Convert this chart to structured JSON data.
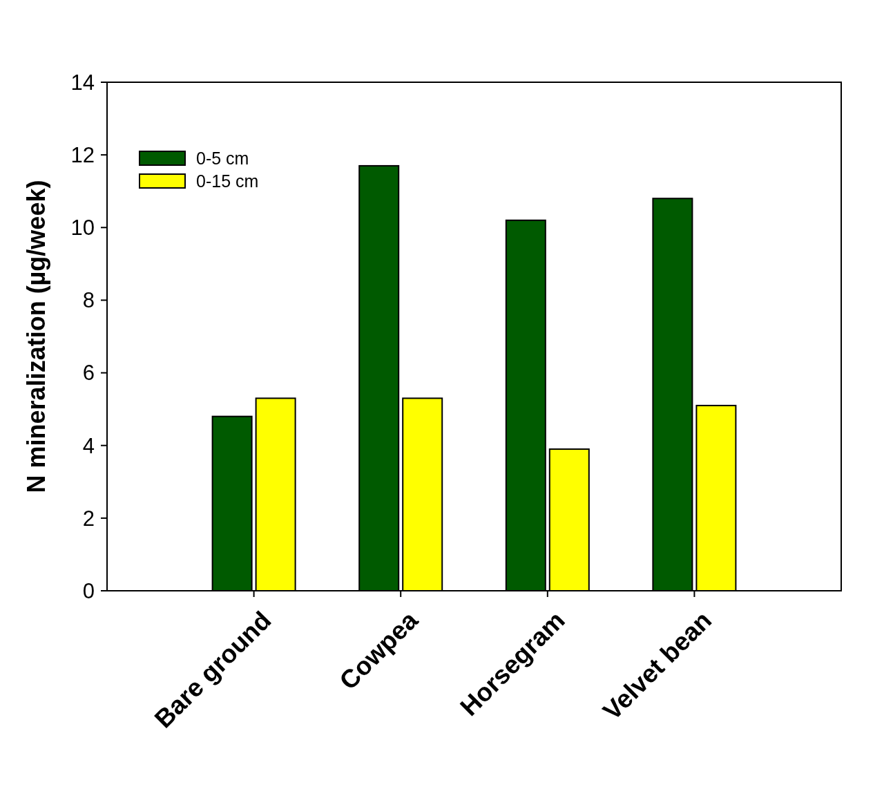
{
  "chart_data": {
    "type": "bar",
    "ylabel": "N mineralization (µg/week)",
    "categories": [
      "Bare ground",
      "Cowpea",
      "Horsegram",
      "Velvet bean"
    ],
    "series": [
      {
        "name": "0-5 cm",
        "color": "#005a00",
        "values": [
          4.8,
          11.7,
          10.2,
          10.8
        ]
      },
      {
        "name": "0-15 cm",
        "color": "#ffff00",
        "values": [
          5.3,
          5.3,
          3.9,
          5.1
        ]
      }
    ],
    "ylim": [
      0,
      14
    ],
    "yticks": [
      0,
      2,
      4,
      6,
      8,
      10,
      12,
      14
    ],
    "grid": false,
    "legend": "top left"
  }
}
